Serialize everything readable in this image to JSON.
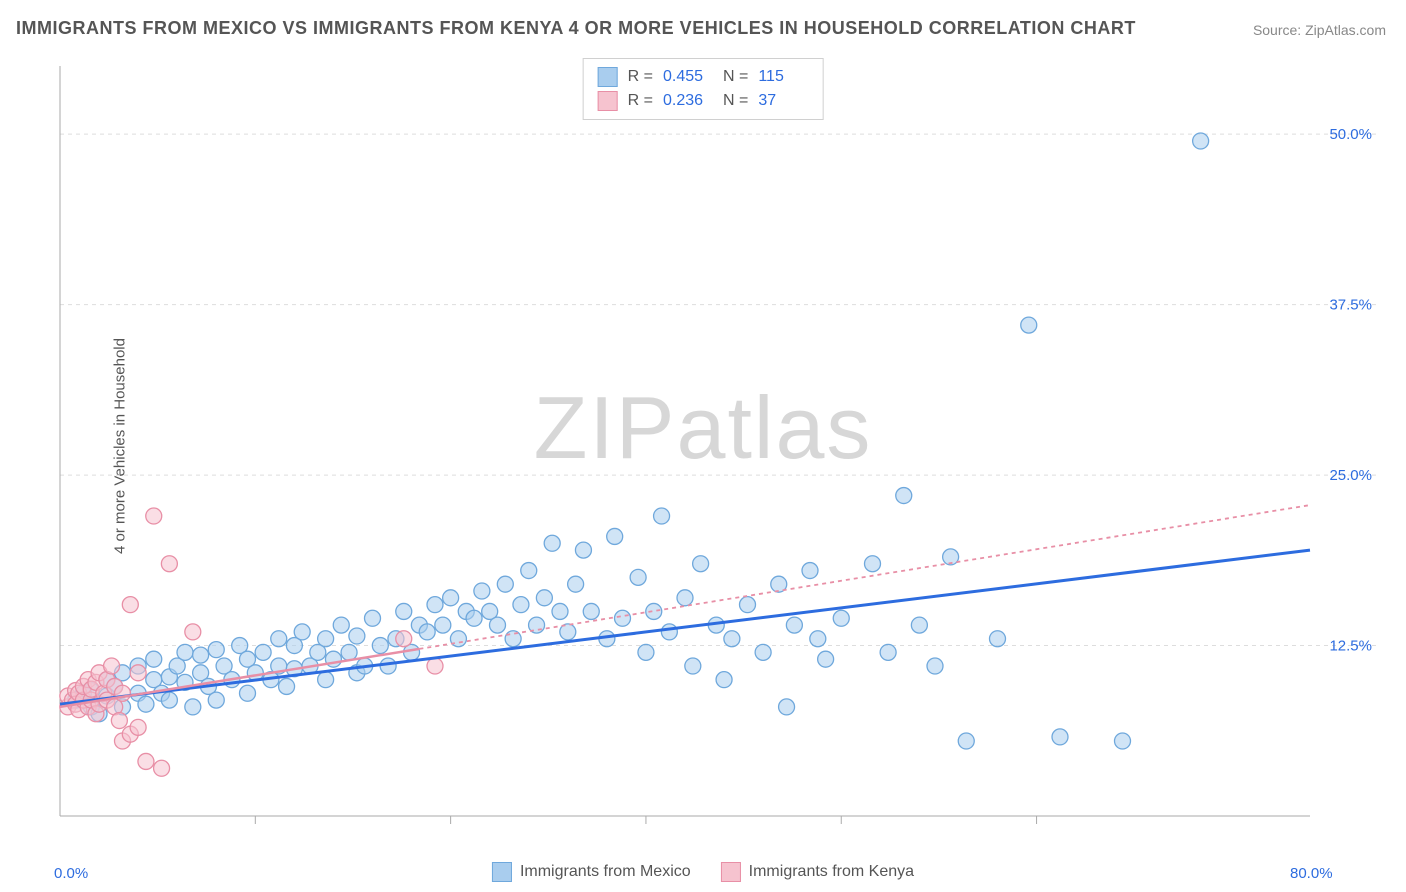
{
  "title": "IMMIGRANTS FROM MEXICO VS IMMIGRANTS FROM KENYA 4 OR MORE VEHICLES IN HOUSEHOLD CORRELATION CHART",
  "source": "Source: ZipAtlas.com",
  "ylabel": "4 or more Vehicles in Household",
  "watermark_a": "ZIP",
  "watermark_b": "atlas",
  "series": [
    {
      "name": "Immigrants from Mexico",
      "key": "mexico",
      "fill": "#a9cdee",
      "stroke": "#6fa8dc",
      "line_color": "#2d6cdf",
      "line_dash": "none",
      "r": "0.455",
      "n": "115"
    },
    {
      "name": "Immigrants from Kenya",
      "key": "kenya",
      "fill": "#f6c3cf",
      "stroke": "#e88fa6",
      "line_color": "#e88fa6",
      "line_dash": "4 4",
      "r": "0.236",
      "n": "37"
    }
  ],
  "stats_labels": {
    "r": "R =",
    "n": "N ="
  },
  "x": {
    "min": 0,
    "max": 80,
    "origin_label": "0.0%",
    "max_label": "80.0%",
    "ticks": [
      12.5,
      25,
      37.5,
      50,
      62.5
    ]
  },
  "y": {
    "min": 0,
    "max": 55,
    "ticks": [
      {
        "v": 12.5,
        "label": "12.5%"
      },
      {
        "v": 25,
        "label": "25.0%"
      },
      {
        "v": 37.5,
        "label": "37.5%"
      },
      {
        "v": 50,
        "label": "50.0%"
      }
    ]
  },
  "grid_color": "#dddddd",
  "axis_color": "#aaaaaa",
  "marker_radius": 8,
  "marker_opacity": 0.55,
  "trend": {
    "mexico": {
      "y_at_x0": 8.2,
      "y_at_xmax": 19.5
    },
    "kenya": {
      "y_at_x0": 8.0,
      "y_at_xmax": 22.8,
      "solid_until_x": 23
    }
  },
  "points": {
    "mexico": [
      [
        1,
        8.5
      ],
      [
        1.5,
        9
      ],
      [
        2,
        8
      ],
      [
        2,
        9.2
      ],
      [
        2.5,
        7.5
      ],
      [
        3,
        8.8
      ],
      [
        3,
        10
      ],
      [
        3.5,
        9.5
      ],
      [
        4,
        8
      ],
      [
        4,
        10.5
      ],
      [
        5,
        9
      ],
      [
        5,
        11
      ],
      [
        5.5,
        8.2
      ],
      [
        6,
        10
      ],
      [
        6,
        11.5
      ],
      [
        6.5,
        9
      ],
      [
        7,
        10.2
      ],
      [
        7,
        8.5
      ],
      [
        7.5,
        11
      ],
      [
        8,
        9.8
      ],
      [
        8,
        12
      ],
      [
        8.5,
        8
      ],
      [
        9,
        10.5
      ],
      [
        9,
        11.8
      ],
      [
        9.5,
        9.5
      ],
      [
        10,
        12.2
      ],
      [
        10,
        8.5
      ],
      [
        10.5,
        11
      ],
      [
        11,
        10
      ],
      [
        11.5,
        12.5
      ],
      [
        12,
        9
      ],
      [
        12,
        11.5
      ],
      [
        12.5,
        10.5
      ],
      [
        13,
        12
      ],
      [
        13.5,
        10
      ],
      [
        14,
        11
      ],
      [
        14,
        13
      ],
      [
        14.5,
        9.5
      ],
      [
        15,
        12.5
      ],
      [
        15,
        10.8
      ],
      [
        15.5,
        13.5
      ],
      [
        16,
        11
      ],
      [
        16.5,
        12
      ],
      [
        17,
        10
      ],
      [
        17,
        13
      ],
      [
        17.5,
        11.5
      ],
      [
        18,
        14
      ],
      [
        18.5,
        12
      ],
      [
        19,
        10.5
      ],
      [
        19,
        13.2
      ],
      [
        19.5,
        11
      ],
      [
        20,
        14.5
      ],
      [
        20.5,
        12.5
      ],
      [
        21,
        11
      ],
      [
        21.5,
        13
      ],
      [
        22,
        15
      ],
      [
        22.5,
        12
      ],
      [
        23,
        14
      ],
      [
        23.5,
        13.5
      ],
      [
        24,
        15.5
      ],
      [
        24.5,
        14
      ],
      [
        25,
        16
      ],
      [
        25.5,
        13
      ],
      [
        26,
        15
      ],
      [
        26.5,
        14.5
      ],
      [
        27,
        16.5
      ],
      [
        27.5,
        15
      ],
      [
        28,
        14
      ],
      [
        28.5,
        17
      ],
      [
        29,
        13
      ],
      [
        29.5,
        15.5
      ],
      [
        30,
        18
      ],
      [
        30.5,
        14
      ],
      [
        31,
        16
      ],
      [
        31.5,
        20
      ],
      [
        32,
        15
      ],
      [
        32.5,
        13.5
      ],
      [
        33,
        17
      ],
      [
        33.5,
        19.5
      ],
      [
        34,
        15
      ],
      [
        35,
        13
      ],
      [
        35.5,
        20.5
      ],
      [
        36,
        14.5
      ],
      [
        37,
        17.5
      ],
      [
        37.5,
        12
      ],
      [
        38,
        15
      ],
      [
        38.5,
        22
      ],
      [
        39,
        13.5
      ],
      [
        40,
        16
      ],
      [
        40.5,
        11
      ],
      [
        41,
        18.5
      ],
      [
        42,
        14
      ],
      [
        42.5,
        10
      ],
      [
        43,
        13
      ],
      [
        44,
        15.5
      ],
      [
        45,
        12
      ],
      [
        46,
        17
      ],
      [
        46.5,
        8
      ],
      [
        47,
        14
      ],
      [
        48,
        18
      ],
      [
        48.5,
        13
      ],
      [
        49,
        11.5
      ],
      [
        50,
        14.5
      ],
      [
        52,
        18.5
      ],
      [
        53,
        12
      ],
      [
        54,
        23.5
      ],
      [
        55,
        14
      ],
      [
        56,
        11
      ],
      [
        57,
        19
      ],
      [
        58,
        5.5
      ],
      [
        60,
        13
      ],
      [
        62,
        36
      ],
      [
        64,
        5.8
      ],
      [
        68,
        5.5
      ],
      [
        73,
        49.5
      ]
    ],
    "kenya": [
      [
        0.5,
        8
      ],
      [
        0.5,
        8.8
      ],
      [
        0.8,
        8.5
      ],
      [
        1,
        9.2
      ],
      [
        1,
        8.2
      ],
      [
        1.2,
        7.8
      ],
      [
        1.2,
        9
      ],
      [
        1.5,
        8.5
      ],
      [
        1.5,
        9.5
      ],
      [
        1.8,
        8
      ],
      [
        1.8,
        10
      ],
      [
        2,
        8.5
      ],
      [
        2,
        9.3
      ],
      [
        2.3,
        7.5
      ],
      [
        2.3,
        9.8
      ],
      [
        2.5,
        8.2
      ],
      [
        2.5,
        10.5
      ],
      [
        2.8,
        9
      ],
      [
        3,
        8.5
      ],
      [
        3,
        10
      ],
      [
        3.3,
        11
      ],
      [
        3.5,
        8
      ],
      [
        3.5,
        9.5
      ],
      [
        3.8,
        7
      ],
      [
        4,
        5.5
      ],
      [
        4,
        9
      ],
      [
        4.5,
        6
      ],
      [
        4.5,
        15.5
      ],
      [
        5,
        10.5
      ],
      [
        5,
        6.5
      ],
      [
        5.5,
        4
      ],
      [
        6,
        22
      ],
      [
        7,
        18.5
      ],
      [
        8.5,
        13.5
      ],
      [
        6.5,
        3.5
      ],
      [
        22,
        13
      ],
      [
        24,
        11
      ]
    ]
  }
}
